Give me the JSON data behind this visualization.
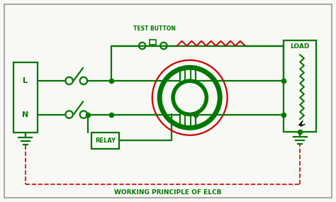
{
  "title": "WORKING PRINCIPLE OF ELCB",
  "test_button_label": "TEST BUTTON",
  "load_label": "LOAD",
  "relay_label": "RELAY",
  "L_label": "L",
  "N_label": "N",
  "green": "#007700",
  "red": "#cc0000",
  "bg_color": "#f8f8f4",
  "border_color": "#999999",
  "line_width": 1.6,
  "font_size": 7,
  "figw": 4.74,
  "figh": 2.85,
  "dpi": 100
}
